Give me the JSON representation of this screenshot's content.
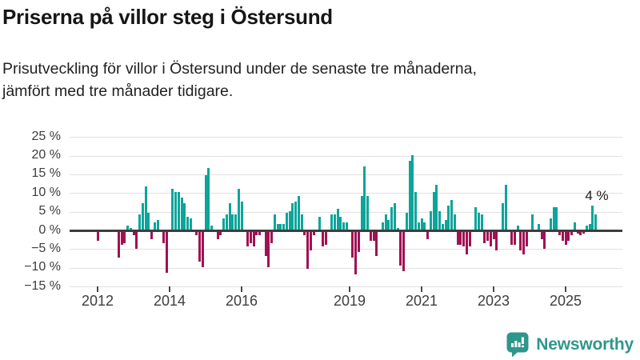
{
  "header": {
    "title": "Priserna på villor steg i Östersund",
    "subtitle": "Prisutveckling för villor i Östersund under de senaste tre månaderna,\njämfört med tre månader tidigare."
  },
  "chart_data": {
    "type": "bar",
    "unit": "%",
    "start_month": "2012-01",
    "x_unit": "month",
    "ylim": [
      -15,
      25
    ],
    "grid": true,
    "legend": "none",
    "colors": {
      "positive": "#0da59a",
      "negative": "#a01253"
    },
    "y_ticks": [
      {
        "v": 25,
        "label": "25 %"
      },
      {
        "v": 20,
        "label": "20 %"
      },
      {
        "v": 15,
        "label": "15 %"
      },
      {
        "v": 10,
        "label": "10 %"
      },
      {
        "v": 5,
        "label": "5 %"
      },
      {
        "v": 0,
        "label": "0 %"
      },
      {
        "v": -5,
        "label": "−5 %"
      },
      {
        "v": -10,
        "label": "−10 %"
      },
      {
        "v": -15,
        "label": "−15 %"
      }
    ],
    "x_ticks": [
      {
        "label": "2012",
        "month_index": 0
      },
      {
        "label": "2014",
        "month_index": 24
      },
      {
        "label": "2016",
        "month_index": 48
      },
      {
        "label": "2019",
        "month_index": 84
      },
      {
        "label": "2021",
        "month_index": 108
      },
      {
        "label": "2023",
        "month_index": 132
      },
      {
        "label": "2025",
        "month_index": 156
      }
    ],
    "annotation": {
      "text": "4 %",
      "month_index": 166,
      "value": 4
    },
    "values": [
      -2.5,
      0,
      0,
      0,
      0,
      0,
      0,
      -7,
      -3.5,
      -3,
      1,
      0.5,
      -1,
      -4.5,
      4,
      7,
      11.5,
      4.5,
      -2,
      2,
      2.5,
      0,
      -3,
      -11,
      0,
      11,
      10,
      10,
      8.5,
      7,
      3.5,
      3,
      0,
      -1,
      -8,
      -9.5,
      14.5,
      16.5,
      1,
      0,
      -2,
      -1,
      3,
      4,
      7,
      4,
      4,
      11,
      7.5,
      0,
      -4,
      -3,
      -4,
      -1,
      -1,
      0,
      -6.5,
      -9.5,
      -3,
      4,
      1.5,
      1.5,
      1.5,
      4.5,
      5,
      7,
      7.5,
      9,
      4,
      -1,
      -10,
      -5,
      -1,
      0,
      3.5,
      -4,
      -3.5,
      0,
      4,
      4,
      5.5,
      3.5,
      2,
      2,
      0,
      -7,
      -11.5,
      -5.5,
      9,
      17,
      9,
      -2.5,
      -2.5,
      -6.5,
      0,
      2,
      4,
      2.5,
      6,
      7,
      0.5,
      -9,
      -10.5,
      4.5,
      18.5,
      20,
      10,
      2,
      3,
      2,
      -2,
      5,
      10,
      12,
      5,
      1.5,
      2.5,
      6.5,
      8,
      4,
      -3.5,
      -3.5,
      -4,
      -6,
      -4,
      0,
      6,
      4.5,
      4,
      -3,
      -2.5,
      -4,
      -2,
      -5,
      0,
      7,
      12,
      0,
      -3.5,
      -3.5,
      1,
      -5,
      -6,
      -4,
      0,
      4,
      0,
      1.5,
      -2,
      -4.5,
      0,
      3,
      6,
      6,
      -1,
      -2.5,
      -3.5,
      -2.5,
      -1,
      2,
      -0.5,
      -1,
      -0.5,
      1,
      1.5,
      6.5,
      4
    ]
  },
  "footer": {
    "brand": "Newsworthy"
  }
}
